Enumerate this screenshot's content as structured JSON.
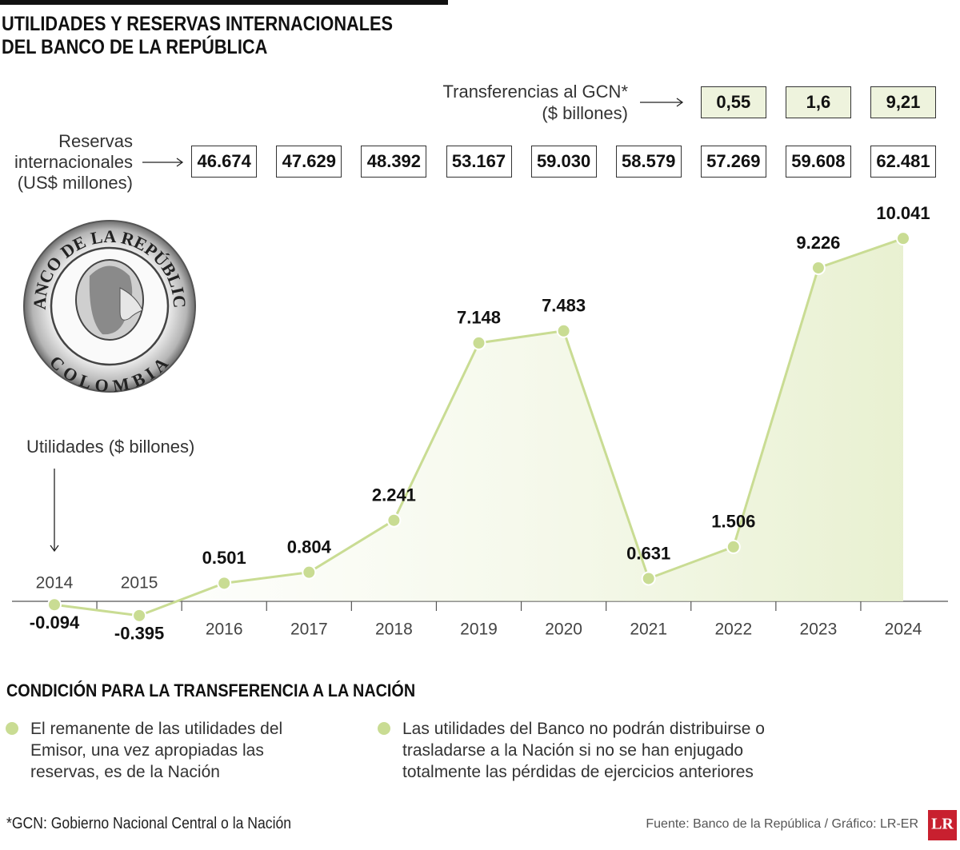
{
  "chart_data": {
    "type": "line",
    "title": "UTILIDADES Y RESERVAS INTERNACIONALES\nDEL BANCO DE LA REPÚBLICA",
    "categories": [
      "2014",
      "2015",
      "2016",
      "2017",
      "2018",
      "2019",
      "2020",
      "2021",
      "2022",
      "2023",
      "2024"
    ],
    "series": [
      {
        "name": "Utilidades ($ billones)",
        "color": "#c9dc93",
        "values": [
          -0.094,
          -0.395,
          0.501,
          0.804,
          2.241,
          7.148,
          7.483,
          0.631,
          1.506,
          9.226,
          10.041
        ]
      }
    ],
    "ylim": [
      -1,
      11
    ],
    "reserves": {
      "label": "Reservas\ninternacionales\n(US$ millones)",
      "values": [
        null,
        null,
        46674,
        47629,
        48392,
        53167,
        59030,
        58579,
        57269,
        59608,
        62481
      ],
      "value_labels": [
        null,
        null,
        "46.674",
        "47.629",
        "48.392",
        "53.167",
        "59.030",
        "58.579",
        "57.269",
        "59.608",
        "62.481"
      ]
    },
    "transfers": {
      "label": "Transferencias al GCN*\n($ billones)",
      "values": [
        null,
        null,
        null,
        null,
        null,
        null,
        null,
        null,
        0.55,
        1.6,
        9.21
      ],
      "value_labels": [
        null,
        null,
        null,
        null,
        null,
        null,
        null,
        null,
        "0,55",
        "1,6",
        "9,21"
      ]
    }
  },
  "logo": {
    "top": "BANCO DE LA REPÚBLICA",
    "bottom": "COLOMBIA"
  },
  "condition": {
    "title": "CONDICIÓN PARA LA TRANSFERENCIA A LA NACIÓN",
    "items": [
      "El remanente de las utilidades del\nEmisor, una vez apropiadas las\nreservas, es de la Nación",
      "Las utilidades del Banco no podrán distribuirse o\ntrasladarse a la Nación si no se han enjugado\ntotalmente las pérdidas de ejercicios anteriores"
    ]
  },
  "footnote": "*GCN: Gobierno Nacional Central o la Nación",
  "source": "Fuente: Banco de la República / Gráfico: LR-ER",
  "brand": "LR"
}
